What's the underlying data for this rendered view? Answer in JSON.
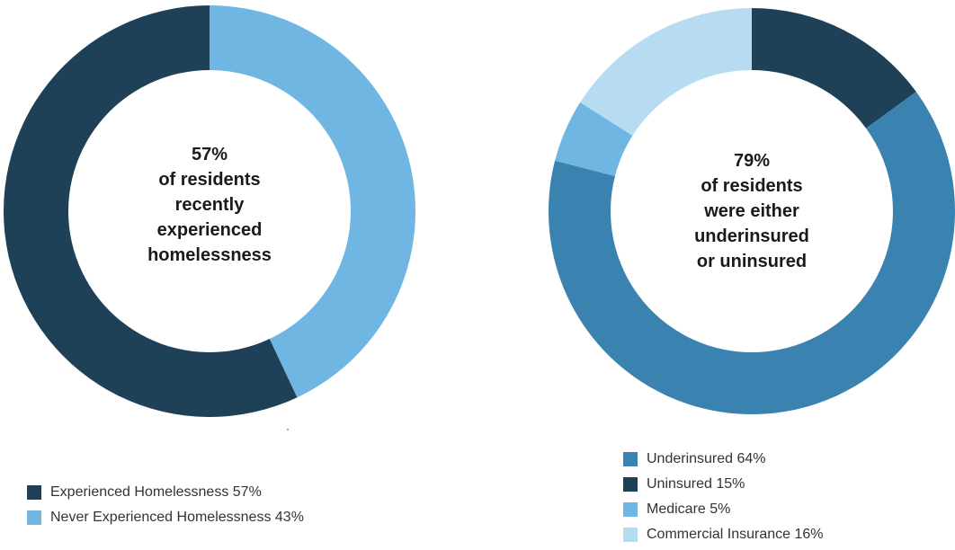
{
  "chart_data": [
    {
      "type": "pie",
      "variant": "donut",
      "center_lines": [
        "57%",
        "of residents",
        "recently",
        "experienced",
        "homelessness"
      ],
      "slices": [
        {
          "label": "Experienced Homelessness 57%",
          "value": 57,
          "color": "#1e4158"
        },
        {
          "label": "Never Experienced Homelessness 43%",
          "value": 43,
          "color": "#6fb6e3"
        }
      ],
      "start_angle_deg": 0,
      "order": "counterclockwise-from-top",
      "legend_position": "bottom-left"
    },
    {
      "type": "pie",
      "variant": "donut",
      "center_lines": [
        "79%",
        "of residents",
        "were either",
        "underinsured",
        "or uninsured"
      ],
      "slices": [
        {
          "label": "Underinsured 64%",
          "value": 64,
          "color": "#3a83b0"
        },
        {
          "label": "Uninsured 15%",
          "value": 15,
          "color": "#1e4158"
        },
        {
          "label": "Medicare 5%",
          "value": 5,
          "color": "#6fb6e3"
        },
        {
          "label": "Commercial Insurance 16%",
          "value": 16,
          "color": "#b7dcf1"
        }
      ],
      "start_angle_deg": 0,
      "draw_order": [
        1,
        0,
        2,
        3
      ],
      "legend_position": "bottom-right"
    }
  ]
}
